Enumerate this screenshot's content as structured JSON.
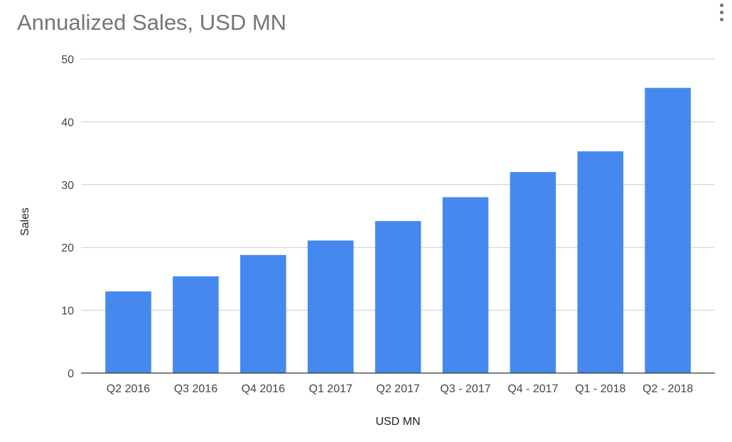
{
  "chart_data": {
    "type": "bar",
    "title": "Annualized Sales, USD MN",
    "xlabel": "USD MN",
    "ylabel": "Sales",
    "categories": [
      "Q2 2016",
      "Q3 2016",
      "Q4 2016",
      "Q1 2017",
      "Q2 2017",
      "Q3 - 2017",
      "Q4 - 2017",
      "Q1 - 2018",
      "Q2 - 2018"
    ],
    "series": [
      {
        "values": [
          13.0,
          15.4,
          18.8,
          21.1,
          24.2,
          28.0,
          32.0,
          35.3,
          45.4
        ],
        "color": "#4589ee"
      }
    ],
    "ylim": [
      0,
      50
    ],
    "yticks": [
      0,
      10,
      20,
      30,
      40,
      50
    ],
    "grid": true,
    "legend": "none"
  },
  "toolbar": {
    "menu_icon": "more-vert-icon"
  }
}
